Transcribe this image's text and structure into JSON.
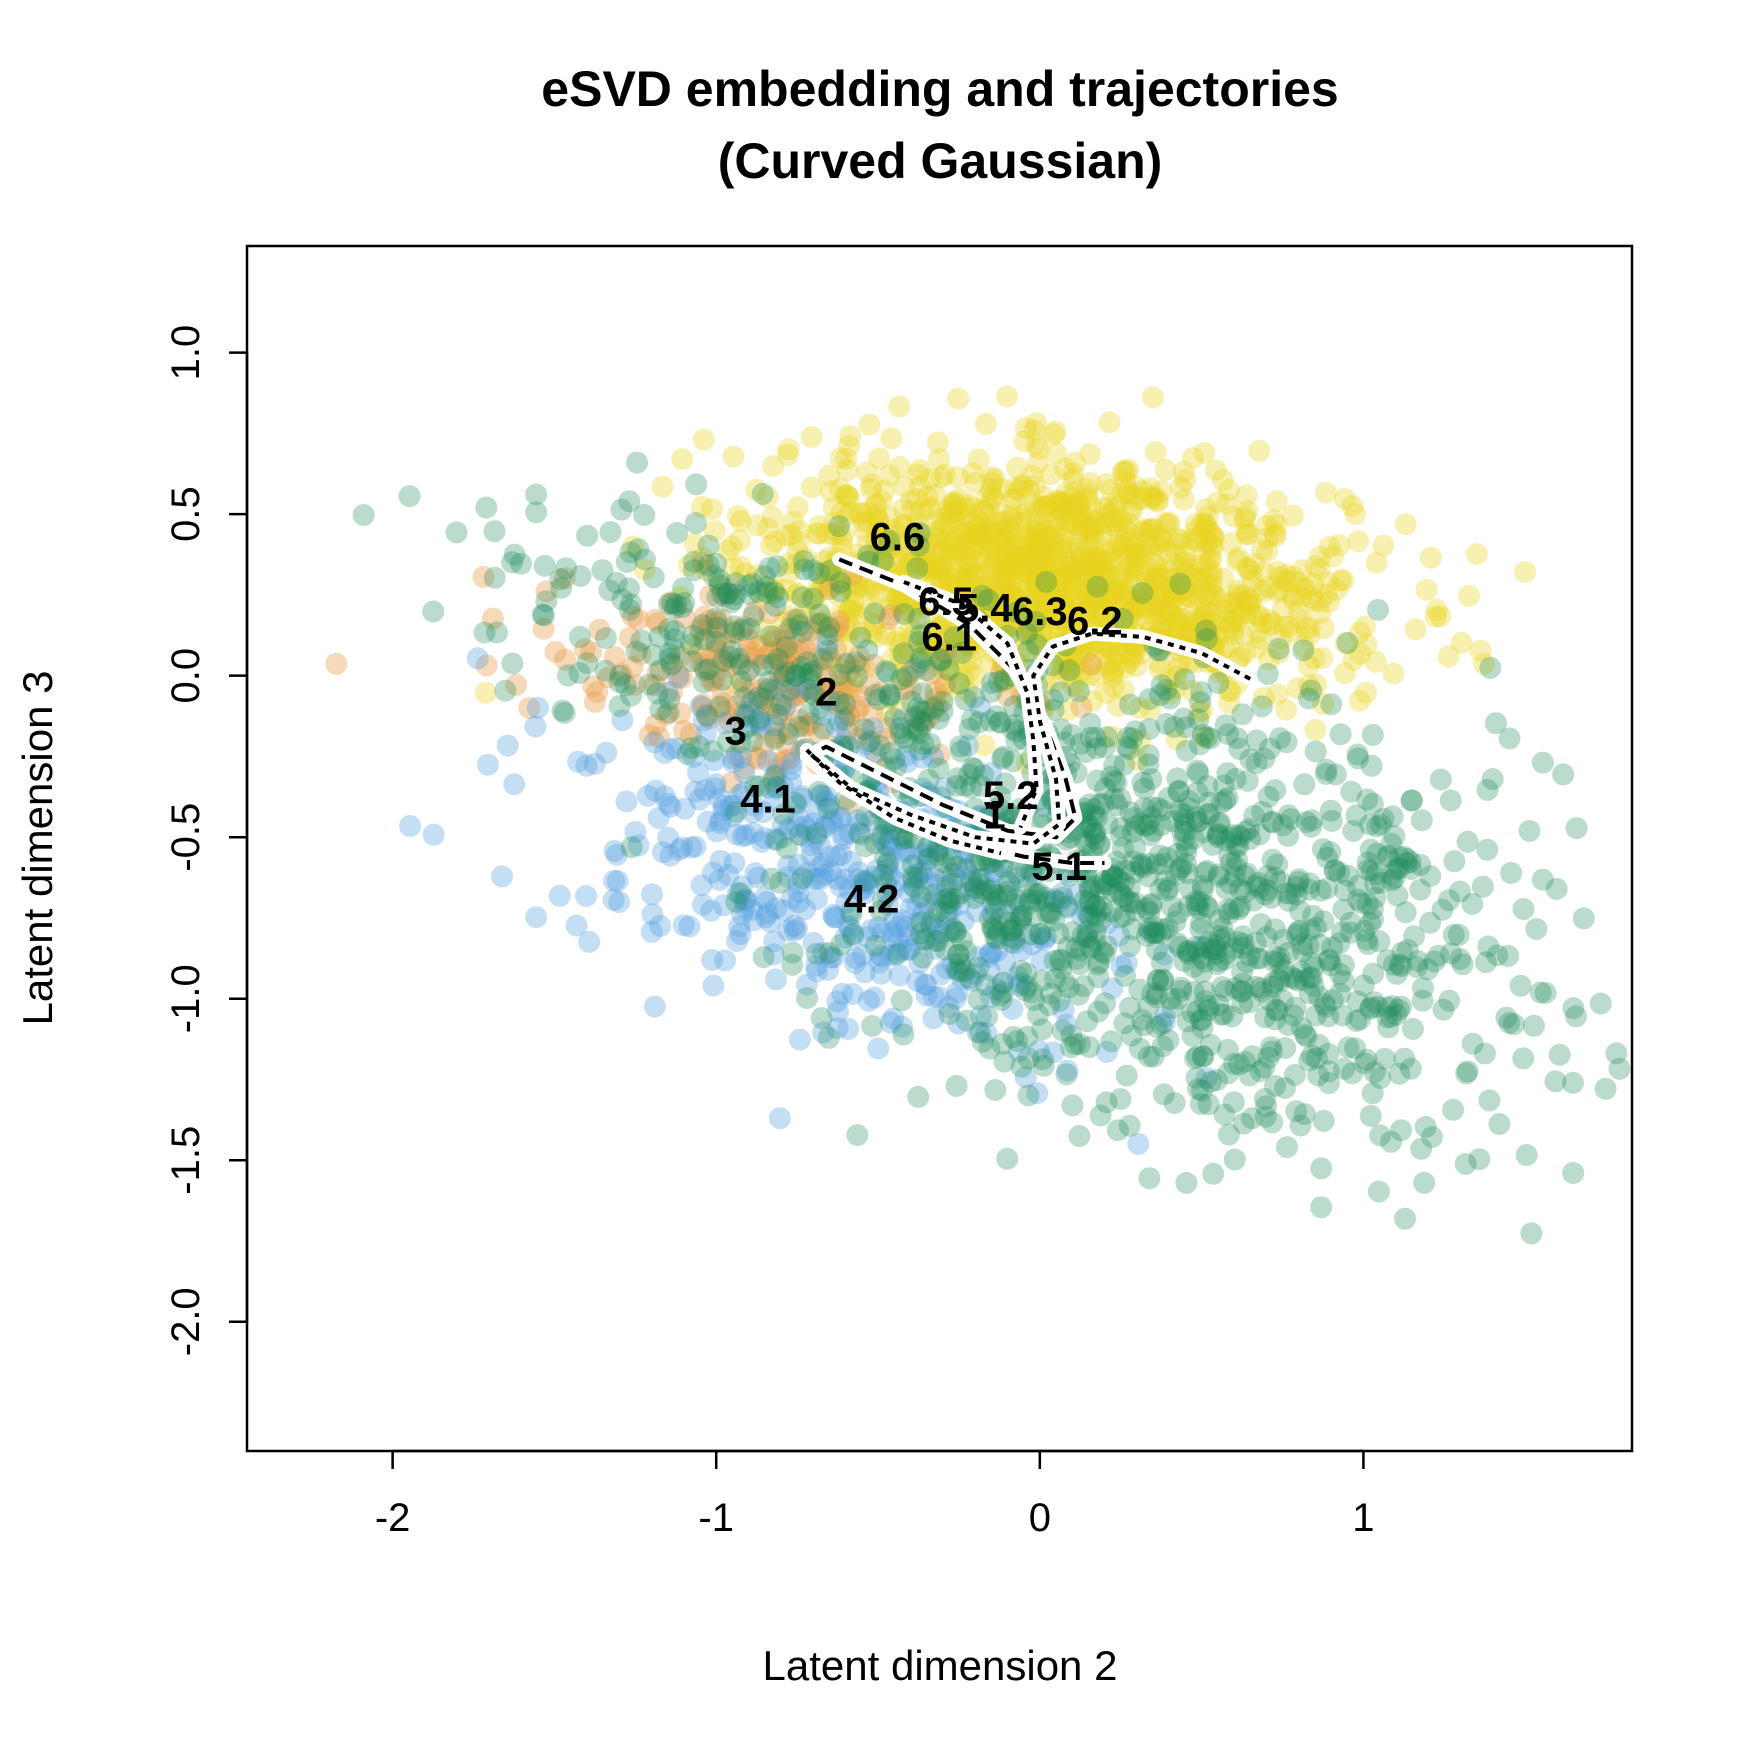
{
  "chart_data": {
    "type": "scatter",
    "title": "eSVD embedding and trajectories",
    "subtitle": "(Curved Gaussian)",
    "xlabel": "Latent dimension 2",
    "ylabel": "Latent dimension 3",
    "xlim": [
      -2.45,
      1.83
    ],
    "ylim": [
      -2.4,
      1.33
    ],
    "x_ticks": [
      -2,
      -1,
      0,
      1
    ],
    "x_tick_labels": [
      "-2",
      "-1",
      "0",
      "1"
    ],
    "y_ticks": [
      -2.0,
      -1.5,
      -1.0,
      -0.5,
      0.0,
      0.5,
      1.0
    ],
    "y_tick_labels": [
      "-2.0",
      "-1.5",
      "-1.0",
      "-0.5",
      "0.0",
      "0.5",
      "1.0"
    ],
    "grid": false,
    "legend": "none",
    "clusters": [
      {
        "color": "#E8D520",
        "opacity": 0.35,
        "n": 1500,
        "center": [
          0.05,
          0.3
        ],
        "sd": [
          0.45,
          0.18
        ],
        "rho": -0.2
      },
      {
        "color": "#E8A050",
        "opacity": 0.4,
        "n": 220,
        "center": [
          -0.85,
          -0.02
        ],
        "sd": [
          0.32,
          0.14
        ],
        "rho": -0.3
      },
      {
        "color": "#56A0E0",
        "opacity": 0.35,
        "n": 500,
        "center": [
          -0.6,
          -0.62
        ],
        "sd": [
          0.42,
          0.28
        ],
        "rho": -0.45
      },
      {
        "color": "#1E8C5A",
        "opacity": 0.3,
        "n": 1200,
        "center": [
          0.35,
          -0.65
        ],
        "sd": [
          0.55,
          0.38
        ],
        "rho": -0.4
      },
      {
        "color": "#1E8C5A",
        "opacity": 0.3,
        "n": 220,
        "center": [
          -0.95,
          0.15
        ],
        "sd": [
          0.4,
          0.18
        ],
        "rho": -0.4
      }
    ],
    "curves": [
      {
        "name": "1",
        "style": "dashed",
        "points": [
          [
            -0.62,
            0.36
          ],
          [
            -0.42,
            0.28
          ],
          [
            -0.22,
            0.16
          ],
          [
            -0.08,
            0.02
          ],
          [
            0.02,
            -0.16
          ],
          [
            0.08,
            -0.32
          ],
          [
            0.11,
            -0.44
          ],
          [
            0.05,
            -0.5
          ],
          [
            -0.1,
            -0.48
          ],
          [
            -0.3,
            -0.4
          ],
          [
            -0.5,
            -0.3
          ],
          [
            -0.66,
            -0.22
          ],
          [
            -0.72,
            -0.25
          ],
          [
            -0.6,
            -0.35
          ],
          [
            -0.42,
            -0.45
          ],
          [
            -0.22,
            -0.52
          ],
          [
            -0.05,
            -0.56
          ],
          [
            0.1,
            -0.58
          ],
          [
            0.2,
            -0.58
          ]
        ]
      },
      {
        "name": "6",
        "style": "dotted",
        "points": [
          [
            0.65,
            -0.01
          ],
          [
            0.5,
            0.07
          ],
          [
            0.32,
            0.12
          ],
          [
            0.16,
            0.13
          ],
          [
            0.04,
            0.09
          ],
          [
            -0.02,
            0.0
          ],
          [
            0.0,
            -0.14
          ],
          [
            0.05,
            -0.32
          ],
          [
            0.06,
            -0.46
          ],
          [
            -0.02,
            -0.52
          ],
          [
            -0.2,
            -0.5
          ],
          [
            -0.4,
            -0.43
          ],
          [
            -0.58,
            -0.35
          ],
          [
            -0.7,
            -0.25
          ],
          [
            -0.72,
            -0.23
          ],
          [
            -0.62,
            -0.33
          ],
          [
            -0.45,
            -0.44
          ],
          [
            -0.28,
            -0.51
          ],
          [
            -0.12,
            -0.55
          ]
        ]
      },
      {
        "name": "6b",
        "style": "dotted",
        "points": [
          [
            -0.42,
            0.29
          ],
          [
            -0.24,
            0.22
          ],
          [
            -0.1,
            0.1
          ],
          [
            -0.04,
            -0.05
          ],
          [
            -0.02,
            -0.2
          ],
          [
            -0.01,
            -0.35
          ],
          [
            -0.06,
            -0.47
          ]
        ]
      }
    ],
    "trajectory_labels": [
      {
        "text": "6.6",
        "x": -0.44,
        "y": 0.42
      },
      {
        "text": "6.5",
        "x": -0.29,
        "y": 0.22
      },
      {
        "text": "5.4",
        "x": -0.17,
        "y": 0.2
      },
      {
        "text": "6.3",
        "x": 0.0,
        "y": 0.19
      },
      {
        "text": "6.2",
        "x": 0.17,
        "y": 0.16
      },
      {
        "text": "6.1",
        "x": -0.28,
        "y": 0.11
      },
      {
        "text": "2",
        "x": -0.66,
        "y": -0.06
      },
      {
        "text": "3",
        "x": -0.94,
        "y": -0.18
      },
      {
        "text": "4.1",
        "x": -0.84,
        "y": -0.39
      },
      {
        "text": "5.2",
        "x": -0.09,
        "y": -0.38
      },
      {
        "text": "1",
        "x": -0.14,
        "y": -0.44
      },
      {
        "text": "5.1",
        "x": 0.06,
        "y": -0.6
      },
      {
        "text": "4.2",
        "x": -0.52,
        "y": -0.7
      }
    ]
  }
}
